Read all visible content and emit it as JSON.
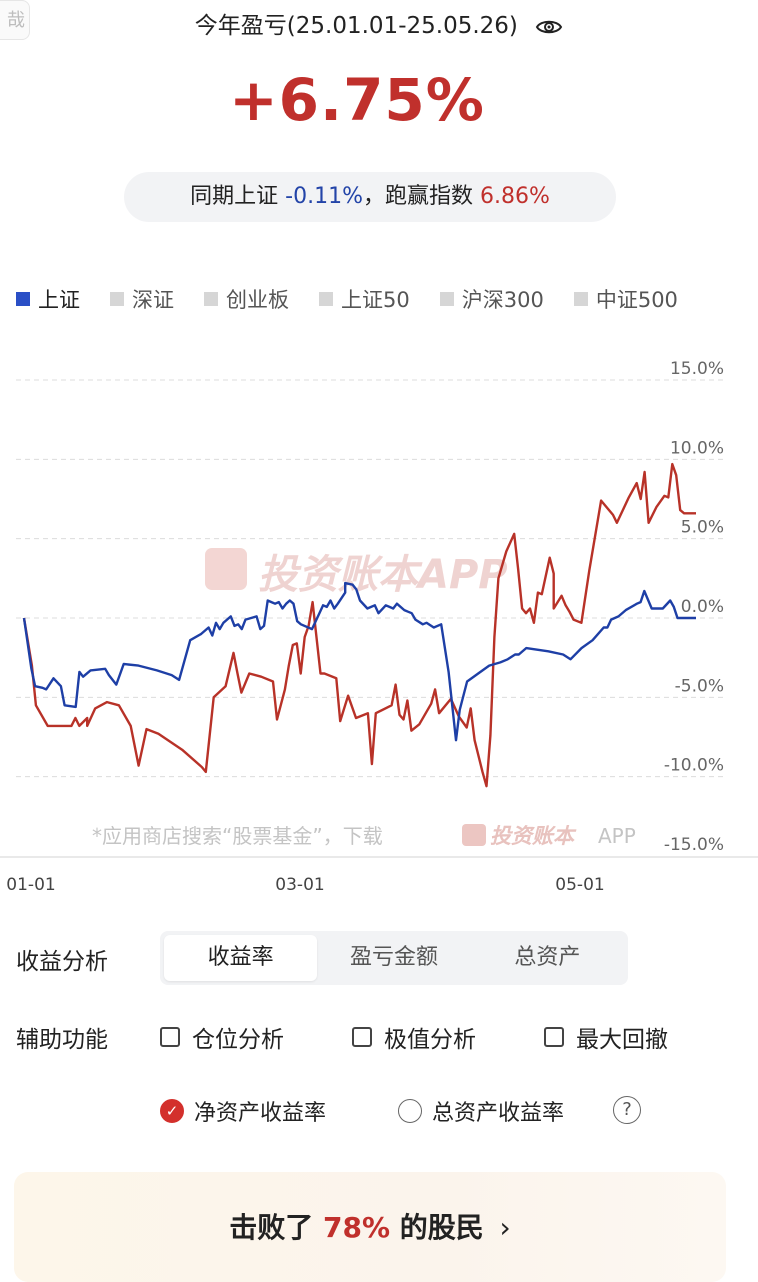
{
  "corner_chip_text": "哉",
  "header": {
    "title": "今年盈亏(25.01.01-25.05.26)",
    "eye_icon": "eye-icon"
  },
  "summary": {
    "return_pct": "+6.75%",
    "compare_prefix": "同期上证",
    "index_return": "-0.11%",
    "sep": "，跑赢指数",
    "excess_return": "6.86%"
  },
  "legend": {
    "items": [
      {
        "label": "上证",
        "active": true
      },
      {
        "label": "深证",
        "active": false
      },
      {
        "label": "创业板",
        "active": false
      },
      {
        "label": "上证50",
        "active": false
      },
      {
        "label": "沪深300",
        "active": false
      },
      {
        "label": "中证500",
        "active": false
      }
    ]
  },
  "chart_data": {
    "type": "line",
    "y_ticks": [
      "15.0%",
      "10.0%",
      "5.0%",
      "0.0%",
      "-5.0%",
      "-10.0%",
      "-15.0%"
    ],
    "ylim": [
      -15,
      15
    ],
    "x_ticks": [
      {
        "label": "01-01",
        "day": 0
      },
      {
        "label": "03-01",
        "day": 59
      },
      {
        "label": "05-01",
        "day": 120
      }
    ],
    "x_range_days": [
      0,
      145
    ],
    "watermark": "投资账本APP",
    "footer_note": "*应用商店搜索“股票基金”，下载",
    "footer_brand": "投资账本",
    "footer_app": "APP",
    "series": [
      {
        "color": "#b83228",
        "points": [
          [
            0,
            0
          ],
          [
            2,
            -3
          ],
          [
            3,
            -5.5
          ],
          [
            6,
            -6.8
          ],
          [
            12,
            -6.8
          ],
          [
            13,
            -6.3
          ],
          [
            14,
            -6.8
          ],
          [
            16,
            -6.3
          ],
          [
            16,
            -6.8
          ],
          [
            18,
            -5.7
          ],
          [
            21,
            -5.3
          ],
          [
            24,
            -5.5
          ],
          [
            27,
            -6.8
          ],
          [
            29,
            -9.3
          ],
          [
            31,
            -7
          ],
          [
            34,
            -7.3
          ],
          [
            40,
            -8.3
          ],
          [
            45,
            -9.4
          ],
          [
            46,
            -9.7
          ],
          [
            48,
            -5
          ],
          [
            51,
            -4.3
          ],
          [
            53,
            -2.2
          ],
          [
            54,
            -3.5
          ],
          [
            55,
            -4.7
          ],
          [
            57,
            -3.5
          ],
          [
            60,
            -3.7
          ],
          [
            63,
            -4
          ],
          [
            64,
            -6.4
          ],
          [
            66,
            -4.5
          ],
          [
            67,
            -3
          ],
          [
            68,
            -1.7
          ],
          [
            69,
            -1.6
          ],
          [
            70,
            -3.5
          ],
          [
            71,
            -1.2
          ],
          [
            72,
            -0.5
          ],
          [
            73,
            1
          ],
          [
            75,
            -3.5
          ],
          [
            76,
            -3.5
          ],
          [
            79,
            -3.8
          ],
          [
            80,
            -6.5
          ],
          [
            82,
            -4.9
          ],
          [
            84,
            -6.3
          ],
          [
            87,
            -6
          ],
          [
            88,
            -9.2
          ],
          [
            89,
            -6
          ],
          [
            93,
            -5.5
          ],
          [
            94,
            -4.2
          ],
          [
            95,
            -6.1
          ],
          [
            96,
            -6.4
          ],
          [
            97,
            -5.2
          ],
          [
            98,
            -7.1
          ],
          [
            100,
            -6.7
          ],
          [
            103,
            -5.4
          ],
          [
            104,
            -4.5
          ],
          [
            105,
            -6
          ],
          [
            108,
            -5.1
          ],
          [
            110,
            -6.2
          ],
          [
            112,
            -6.9
          ],
          [
            113,
            -5.7
          ],
          [
            114,
            -7.7
          ],
          [
            116,
            -9.7
          ],
          [
            117,
            -10.6
          ],
          [
            118,
            -7.4
          ],
          [
            119,
            -1.2
          ],
          [
            120,
            2.5
          ],
          [
            122,
            4.2
          ],
          [
            124,
            5.3
          ],
          [
            125,
            3.1
          ],
          [
            126,
            0.6
          ],
          [
            127,
            0.3
          ],
          [
            128,
            0.6
          ],
          [
            129,
            -0.3
          ],
          [
            130,
            1.6
          ],
          [
            131,
            1.5
          ],
          [
            133,
            3.8
          ],
          [
            134,
            2.8
          ],
          [
            134,
            0.6
          ],
          [
            136,
            1.4
          ],
          [
            137,
            0.8
          ],
          [
            138,
            0.4
          ],
          [
            139,
            -0.1
          ],
          [
            141,
            -0.3
          ],
          [
            143,
            3
          ],
          [
            146,
            7.4
          ],
          [
            149,
            6.5
          ],
          [
            150,
            6
          ],
          [
            153,
            7.6
          ],
          [
            155,
            8.5
          ],
          [
            156,
            7.5
          ],
          [
            157,
            9.2
          ],
          [
            158,
            6
          ],
          [
            160,
            7
          ],
          [
            162,
            7.7
          ],
          [
            163,
            7.6
          ],
          [
            164,
            9.7
          ],
          [
            165,
            9
          ],
          [
            166,
            6.8
          ],
          [
            167,
            6.6
          ],
          [
            170,
            6.6
          ]
        ]
      },
      {
        "color": "#1e3fa6",
        "points": [
          [
            0,
            0
          ],
          [
            2,
            -3.2
          ],
          [
            3,
            -4.3
          ],
          [
            5,
            -4.4
          ],
          [
            6,
            -4.5
          ],
          [
            8,
            -3.8
          ],
          [
            10,
            -4.3
          ],
          [
            11,
            -5.5
          ],
          [
            14,
            -5.6
          ],
          [
            15,
            -3.4
          ],
          [
            16,
            -3.7
          ],
          [
            18,
            -3.3
          ],
          [
            22,
            -3.2
          ],
          [
            23,
            -3.6
          ],
          [
            25,
            -4.2
          ],
          [
            27,
            -2.9
          ],
          [
            31,
            -3
          ],
          [
            36,
            -3.3
          ],
          [
            40,
            -3.6
          ],
          [
            42,
            -3.9
          ],
          [
            45,
            -1.4
          ],
          [
            48,
            -1
          ],
          [
            50,
            -0.6
          ],
          [
            51,
            -1.1
          ],
          [
            52,
            -0.3
          ],
          [
            53,
            -0.7
          ],
          [
            54,
            -0.3
          ],
          [
            56,
            0.1
          ],
          [
            57,
            -0.5
          ],
          [
            58,
            -0.4
          ],
          [
            59,
            -0.7
          ],
          [
            60,
            -0.1
          ],
          [
            63,
            0.1
          ],
          [
            64,
            -0.7
          ],
          [
            65,
            -0.5
          ],
          [
            66,
            1.1
          ],
          [
            67,
            1
          ],
          [
            68,
            0.9
          ],
          [
            69,
            1
          ],
          [
            70,
            0.6
          ],
          [
            71,
            0.9
          ],
          [
            72,
            1.1
          ],
          [
            73,
            0.9
          ],
          [
            74,
            -0.2
          ],
          [
            75,
            -0.4
          ],
          [
            78,
            -0.7
          ],
          [
            80,
            0.3
          ],
          [
            81,
            0.8
          ],
          [
            82,
            0.7
          ],
          [
            83,
            1.1
          ],
          [
            84,
            0.6
          ],
          [
            85,
            0.9
          ],
          [
            87,
            1.6
          ],
          [
            87,
            2.2
          ],
          [
            89,
            2.1
          ],
          [
            90,
            1.8
          ],
          [
            91,
            1.1
          ],
          [
            93,
            0.6
          ],
          [
            94,
            0.7
          ],
          [
            95,
            0.8
          ],
          [
            96,
            0.3
          ],
          [
            98,
            0.8
          ],
          [
            99,
            0.7
          ],
          [
            100,
            0.6
          ],
          [
            101,
            0.9
          ],
          [
            103,
            0.5
          ],
          [
            104,
            0.4
          ],
          [
            105,
            0.3
          ],
          [
            106,
            -0.1
          ],
          [
            108,
            -0.4
          ],
          [
            109,
            -0.3
          ],
          [
            111,
            -0.6
          ],
          [
            113,
            -0.4
          ],
          [
            115,
            -3.4
          ],
          [
            117,
            -7.7
          ],
          [
            118,
            -5.8
          ],
          [
            120,
            -4
          ],
          [
            123,
            -3.5
          ],
          [
            126,
            -3
          ],
          [
            129,
            -2.8
          ],
          [
            131,
            -2.6
          ],
          [
            133,
            -2.3
          ],
          [
            134,
            -2.3
          ],
          [
            136,
            -1.9
          ],
          [
            139,
            -2
          ],
          [
            142,
            -2.1
          ],
          [
            146,
            -2.3
          ],
          [
            148,
            -2.6
          ],
          [
            151,
            -1.9
          ],
          [
            154,
            -1.4
          ],
          [
            157,
            -0.6
          ],
          [
            158,
            -0.6
          ],
          [
            159,
            -0.1
          ],
          [
            161,
            0.1
          ],
          [
            163,
            0.5
          ],
          [
            166,
            0.9
          ],
          [
            167,
            1
          ],
          [
            168,
            1.7
          ],
          [
            170,
            0.6
          ],
          [
            171,
            0.6
          ],
          [
            173,
            0.6
          ],
          [
            175,
            1.1
          ],
          [
            176,
            0.7
          ],
          [
            177,
            0
          ],
          [
            182,
            0
          ]
        ]
      }
    ]
  },
  "analysis": {
    "label": "收益分析",
    "options": [
      "收益率",
      "盈亏金额",
      "总资产"
    ],
    "active_index": 0
  },
  "aux": {
    "label": "辅助功能",
    "checks": [
      "仓位分析",
      "极值分析",
      "最大回撤"
    ]
  },
  "radios": {
    "net": "净资产收益率",
    "total": "总资产收益率",
    "help": "?"
  },
  "banner": {
    "prefix": "击败了",
    "pct": "78%",
    "suffix": "的股民",
    "chevron": "›"
  }
}
